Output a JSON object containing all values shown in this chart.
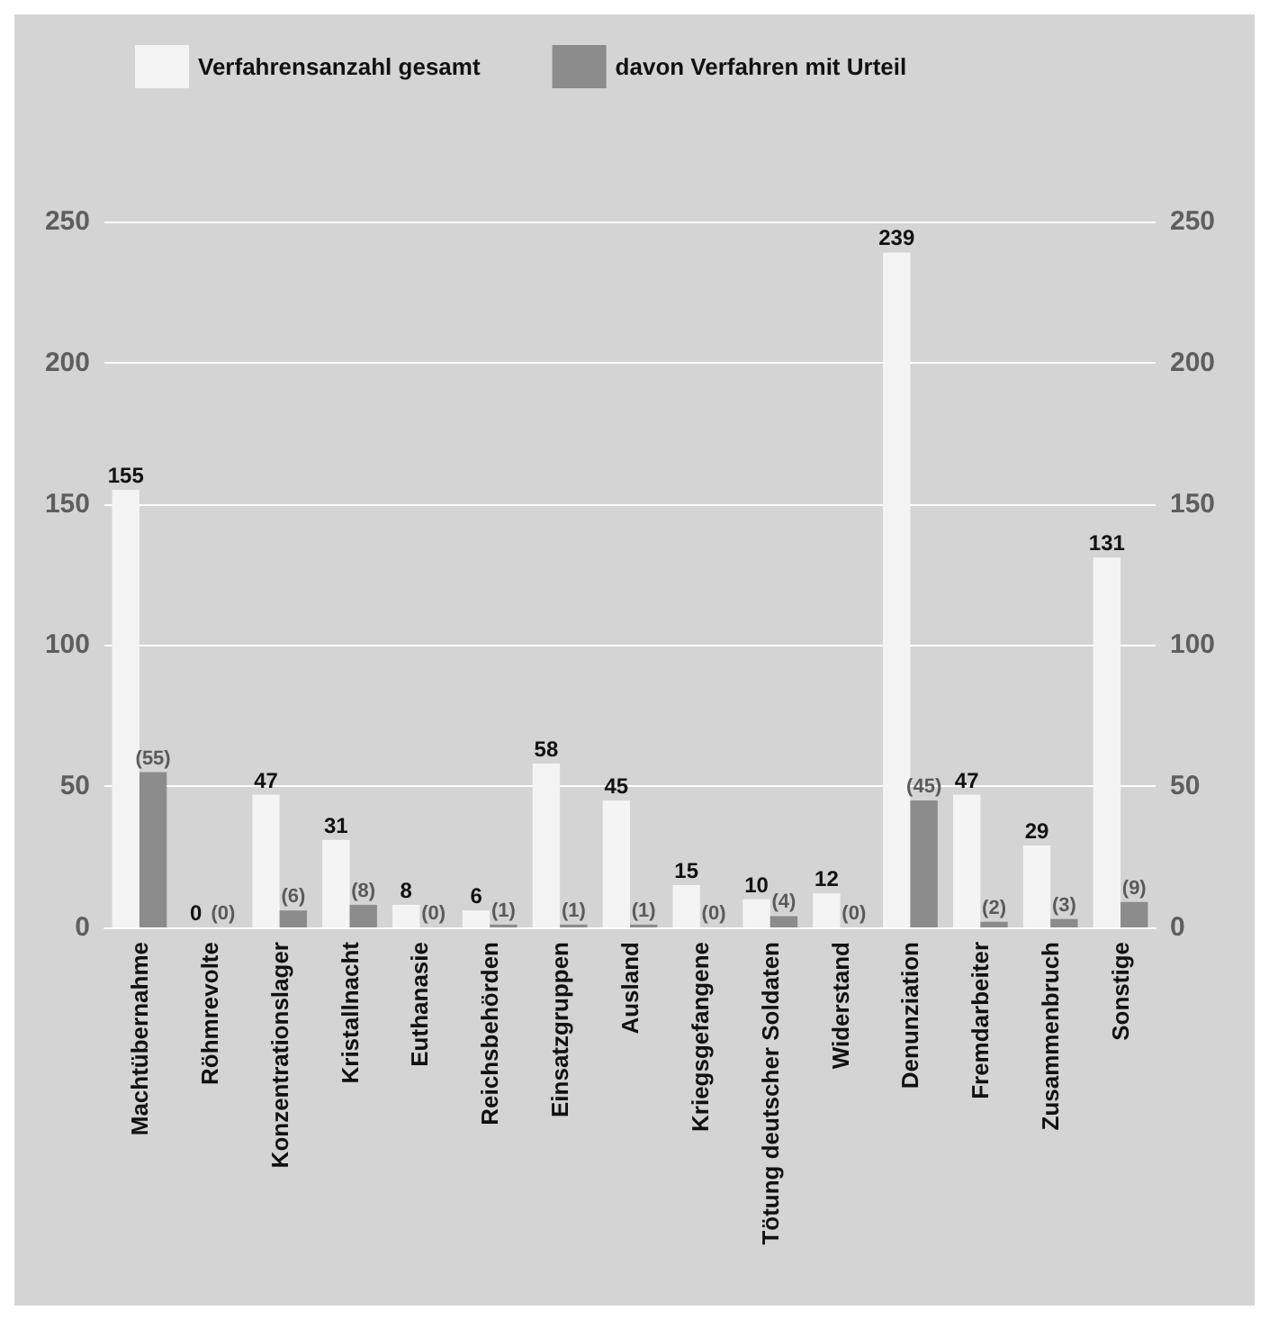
{
  "chart_data": {
    "type": "bar",
    "categories": [
      "Machtübernahme",
      "Röhmrevolte",
      "Konzentrationslager",
      "Kristallnacht",
      "Euthanasie",
      "Reichsbehörden",
      "Einsatzgruppen",
      "Ausland",
      "Kriegsgefangene",
      "Tötung deutscher Soldaten",
      "Widerstand",
      "Denunziation",
      "Fremdarbeiter",
      "Zusammenbruch",
      "Sonstige"
    ],
    "series": [
      {
        "name": "Verfahrensanzahl gesamt",
        "color": "#f4f4f4",
        "values": [
          155,
          0,
          47,
          31,
          8,
          6,
          58,
          45,
          15,
          10,
          12,
          239,
          47,
          29,
          131
        ],
        "value_labels": [
          "155",
          "0",
          "47",
          "31",
          "8",
          "6",
          "58",
          "45",
          "15",
          "10",
          "12",
          "239",
          "47",
          "29",
          "131"
        ]
      },
      {
        "name": "davon Verfahren mit Urteil",
        "color": "#8c8c8c",
        "values": [
          55,
          0,
          6,
          8,
          0,
          1,
          1,
          1,
          0,
          4,
          0,
          45,
          2,
          3,
          9
        ],
        "value_labels": [
          "(55)",
          "(0)",
          "(6)",
          "(8)",
          "(0)",
          "(1)",
          "(1)",
          "(1)",
          "(0)",
          "(4)",
          "(0)",
          "(45)",
          "(2)",
          "(3)",
          "(9)"
        ]
      }
    ],
    "ylim": [
      0,
      250
    ],
    "yticks": [
      0,
      50,
      100,
      150,
      200,
      250
    ],
    "y2lim": [
      0,
      250
    ],
    "y2ticks": [
      0,
      50,
      100,
      150,
      200,
      250
    ],
    "grid": "y",
    "legend": "top left"
  }
}
